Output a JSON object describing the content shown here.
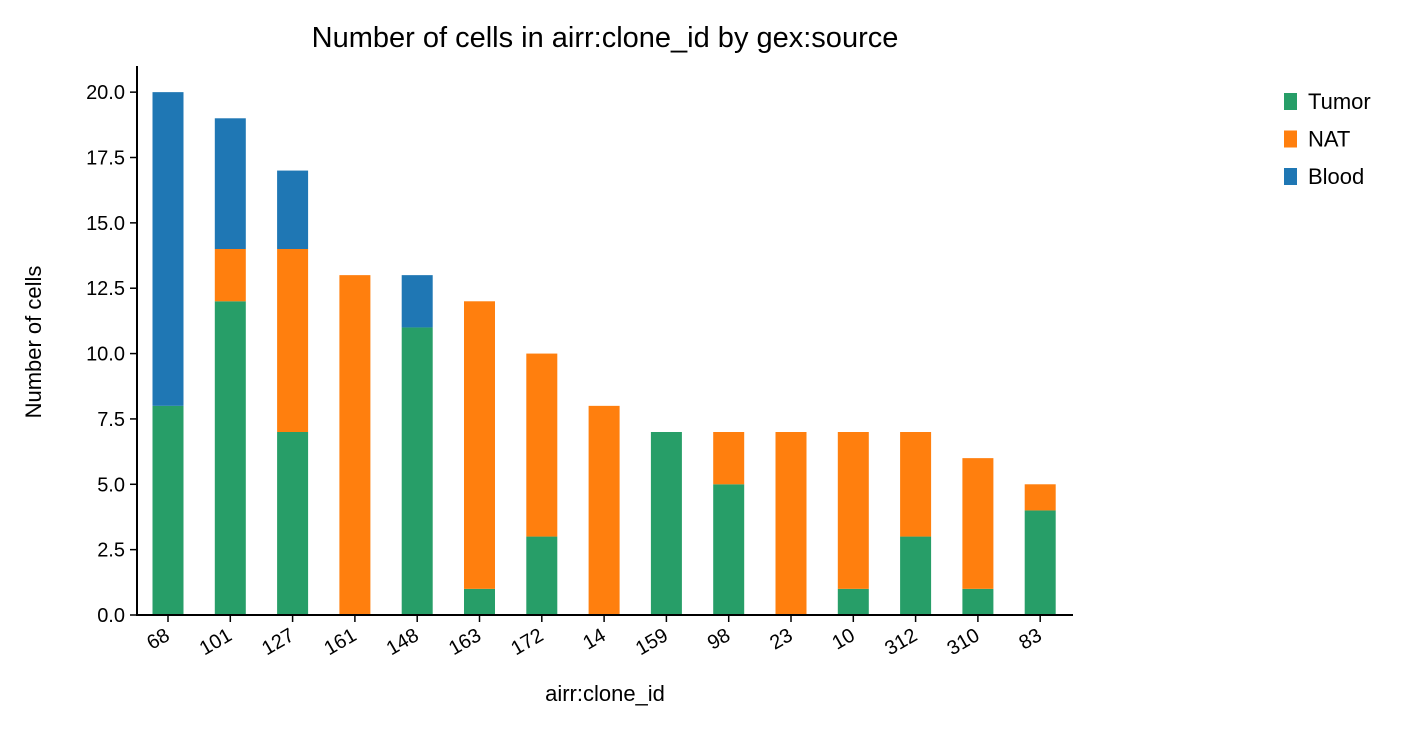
{
  "chart_data": {
    "type": "bar",
    "stacked": true,
    "title": "Number of cells in airr:clone_id by gex:source",
    "xlabel": "airr:clone_id",
    "ylabel": "Number of cells",
    "categories": [
      "68",
      "101",
      "127",
      "161",
      "148",
      "163",
      "172",
      "14",
      "159",
      "98",
      "23",
      "10",
      "312",
      "310",
      "83"
    ],
    "series": [
      {
        "name": "Tumor",
        "color": "#279e68",
        "values": [
          8,
          12,
          7,
          0,
          11,
          1,
          3,
          0,
          7,
          5,
          0,
          1,
          3,
          1,
          4
        ]
      },
      {
        "name": "NAT",
        "color": "#ff7f0e",
        "values": [
          0,
          2,
          7,
          13,
          0,
          11,
          7,
          8,
          0,
          2,
          7,
          6,
          4,
          5,
          1
        ]
      },
      {
        "name": "Blood",
        "color": "#1f77b4",
        "values": [
          12,
          5,
          3,
          0,
          2,
          0,
          0,
          0,
          0,
          0,
          0,
          0,
          0,
          0,
          0
        ]
      }
    ],
    "ylim": [
      0,
      21
    ],
    "yticks": [
      0.0,
      2.5,
      5.0,
      7.5,
      10.0,
      12.5,
      15.0,
      17.5,
      20.0
    ],
    "ytick_labels": [
      "0.0",
      "2.5",
      "5.0",
      "7.5",
      "10.0",
      "12.5",
      "15.0",
      "17.5",
      "20.0"
    ],
    "grid": false,
    "legend_position": "right, outside plot",
    "legend_order": [
      "Tumor",
      "NAT",
      "Blood"
    ],
    "xtick_rotation_deg": 30
  }
}
